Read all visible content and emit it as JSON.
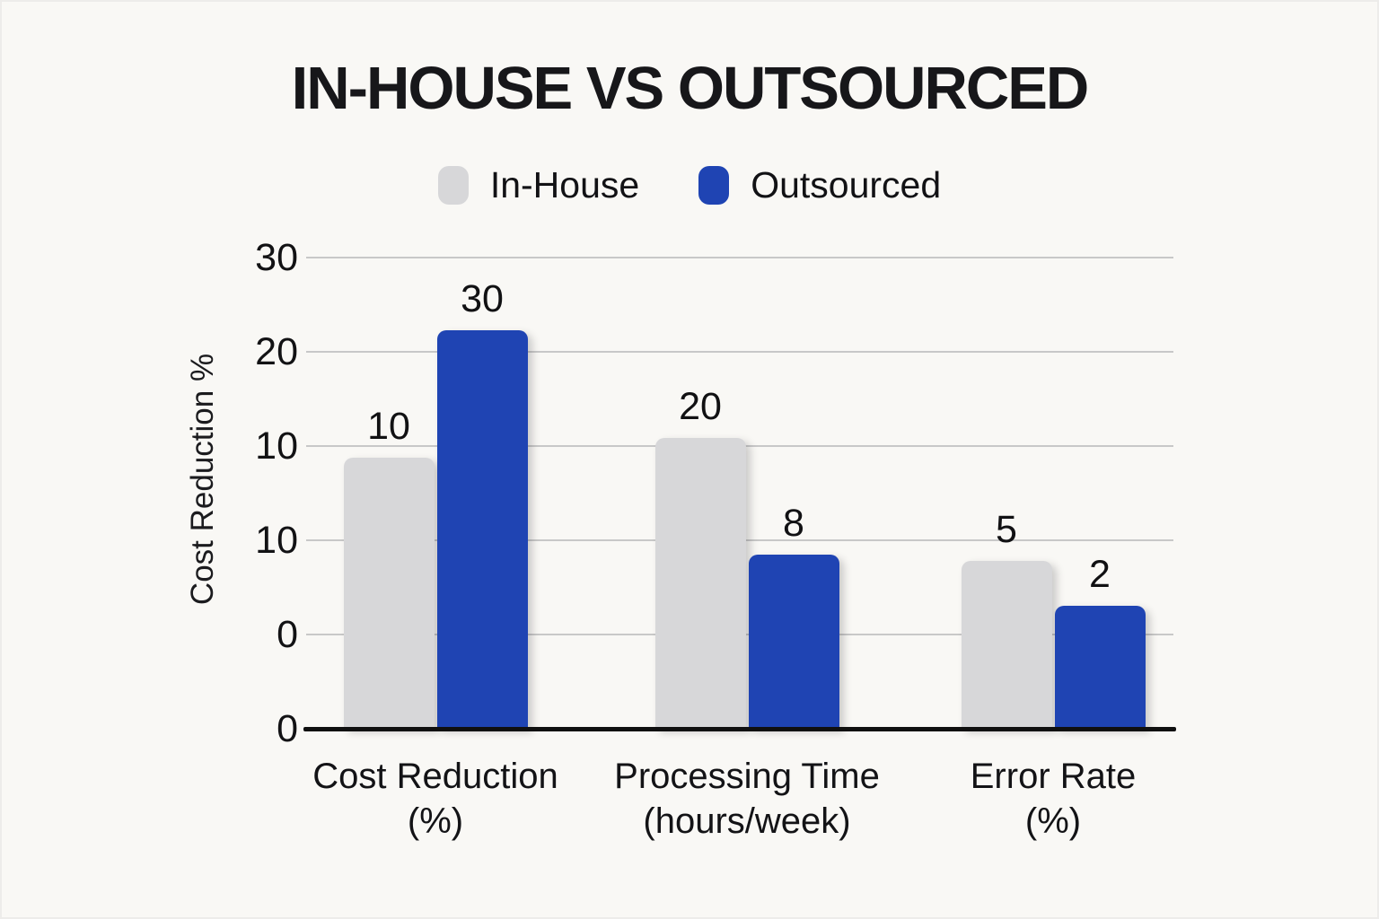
{
  "title": "IN-HOUSE VS OUTSOURCED",
  "chart_data": {
    "type": "bar",
    "title": "IN-HOUSE VS OUTSOURCED",
    "categories": [
      "Cost Reduction (%)",
      "Processing Time (hours/week)",
      "Error Rate (%)"
    ],
    "category_label_lines": [
      [
        "Cost Reduction",
        "(%)"
      ],
      [
        "Processing Time",
        "(hours/week)"
      ],
      [
        "Error Rate",
        "(%)"
      ]
    ],
    "series": [
      {
        "name": "In-House",
        "color": "#d7d7d9",
        "values": [
          10,
          20,
          5
        ],
        "drawn_height_fracs": [
          0.575,
          0.617,
          0.356
        ]
      },
      {
        "name": "Outsourced",
        "color": "#1f44b3",
        "values": [
          30,
          8,
          2
        ],
        "drawn_height_fracs": [
          0.846,
          0.37,
          0.261
        ]
      }
    ],
    "ylabel": "Cost Reduction %",
    "y_tick_labels_top_to_bottom": [
      "30",
      "20",
      "10",
      "10",
      "0",
      "0"
    ],
    "legend_position": "top",
    "grid": "horizontal"
  },
  "colors": {
    "background": "#f9f8f5",
    "in_house": "#d7d7d9",
    "outsourced": "#1f44b3",
    "gridline": "#c8c8c8",
    "axis": "#101010",
    "text": "#141414"
  }
}
